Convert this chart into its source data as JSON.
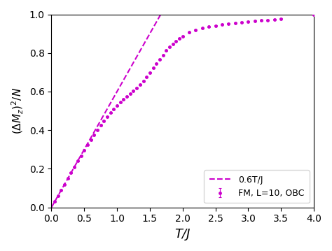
{
  "color": "#cc00cc",
  "line_slope": 0.6,
  "line_label": "0.6T/J",
  "scatter_label": "FM, L=10, OBC",
  "xlabel": "T/J",
  "ylabel": "$(\\Delta M_z)^2/N$",
  "xlim": [
    0,
    4.0
  ],
  "ylim": [
    0.0,
    1.0
  ],
  "xticks": [
    0.0,
    0.5,
    1.0,
    1.5,
    2.0,
    2.5,
    3.0,
    3.5,
    4.0
  ],
  "yticks": [
    0.0,
    0.2,
    0.4,
    0.6,
    0.8,
    1.0
  ],
  "figsize": [
    4.74,
    3.59
  ],
  "dpi": 100,
  "scatter_T": [
    0.05,
    0.1,
    0.15,
    0.2,
    0.25,
    0.3,
    0.35,
    0.4,
    0.45,
    0.5,
    0.55,
    0.6,
    0.65,
    0.7,
    0.75,
    0.8,
    0.85,
    0.9,
    0.95,
    1.0,
    1.05,
    1.1,
    1.15,
    1.2,
    1.25,
    1.3,
    1.35,
    1.4,
    1.45,
    1.5,
    1.55,
    1.6,
    1.65,
    1.7,
    1.75,
    1.8,
    1.85,
    1.9,
    1.95,
    2.0,
    2.1,
    2.2,
    2.3,
    2.4,
    2.5,
    2.6,
    2.7,
    2.8,
    2.9,
    3.0,
    3.1,
    3.2,
    3.3,
    3.4,
    3.5,
    4.0
  ],
  "scatter_Y": [
    0.03,
    0.06,
    0.09,
    0.12,
    0.15,
    0.18,
    0.21,
    0.24,
    0.268,
    0.297,
    0.324,
    0.351,
    0.377,
    0.402,
    0.426,
    0.448,
    0.47,
    0.49,
    0.509,
    0.527,
    0.544,
    0.56,
    0.575,
    0.59,
    0.605,
    0.619,
    0.636,
    0.655,
    0.675,
    0.698,
    0.722,
    0.745,
    0.768,
    0.79,
    0.812,
    0.83,
    0.847,
    0.862,
    0.876,
    0.887,
    0.906,
    0.919,
    0.929,
    0.936,
    0.942,
    0.948,
    0.952,
    0.956,
    0.96,
    0.963,
    0.966,
    0.969,
    0.971,
    0.974,
    0.977,
    0.997
  ],
  "scatter_yerr": [
    0.002,
    0.002,
    0.002,
    0.002,
    0.002,
    0.002,
    0.002,
    0.002,
    0.002,
    0.002,
    0.002,
    0.002,
    0.002,
    0.002,
    0.002,
    0.002,
    0.002,
    0.002,
    0.002,
    0.002,
    0.002,
    0.002,
    0.002,
    0.002,
    0.002,
    0.002,
    0.002,
    0.002,
    0.002,
    0.002,
    0.002,
    0.002,
    0.002,
    0.002,
    0.002,
    0.002,
    0.002,
    0.002,
    0.002,
    0.002,
    0.002,
    0.002,
    0.002,
    0.002,
    0.002,
    0.002,
    0.002,
    0.002,
    0.002,
    0.002,
    0.002,
    0.002,
    0.002,
    0.002,
    0.002,
    0.002
  ]
}
